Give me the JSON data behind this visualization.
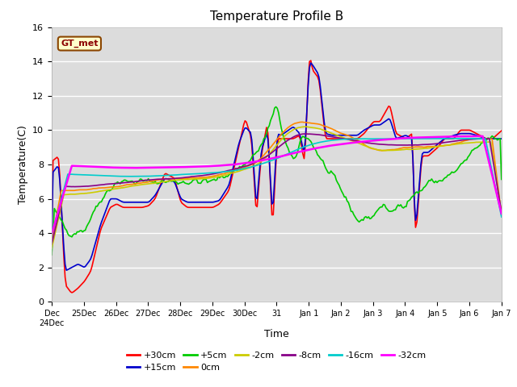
{
  "title": "Temperature Profile B",
  "xlabel": "Time",
  "ylabel": "Temperature(C)",
  "ylim": [
    0,
    16
  ],
  "annotation": "GT_met",
  "background_color": "#dcdcdc",
  "legend_entries": [
    "+30cm",
    "+15cm",
    "+5cm",
    "0cm",
    "-2cm",
    "-8cm",
    "-16cm",
    "-32cm"
  ],
  "line_colors": [
    "#ff0000",
    "#0000cc",
    "#00cc00",
    "#ff8800",
    "#cccc00",
    "#880088",
    "#00cccc",
    "#ff00ff"
  ],
  "tick_labels": [
    "Dec 24",
    "Dec 25",
    "Dec 26",
    "Dec 27",
    "Dec 28",
    "Dec 29",
    "Dec 30",
    "Dec 31",
    "Jan 1",
    "Jan 2",
    "Jan 3",
    "Jan 4",
    "Jan 5",
    "Jan 6",
    "Jan 7"
  ],
  "tick_labels_display": [
    "Dec\n24Dec",
    "25Dec",
    "26Dec",
    "27Dec",
    "28Dec",
    "29Dec",
    "30Dec",
    "31",
    "Jan 1",
    "Jan 2",
    "Jan 3",
    "Jan 4",
    "Jan 5",
    "Jan 6",
    "Jan 7"
  ],
  "yticks": [
    0,
    2,
    4,
    6,
    8,
    10,
    12,
    14,
    16
  ]
}
